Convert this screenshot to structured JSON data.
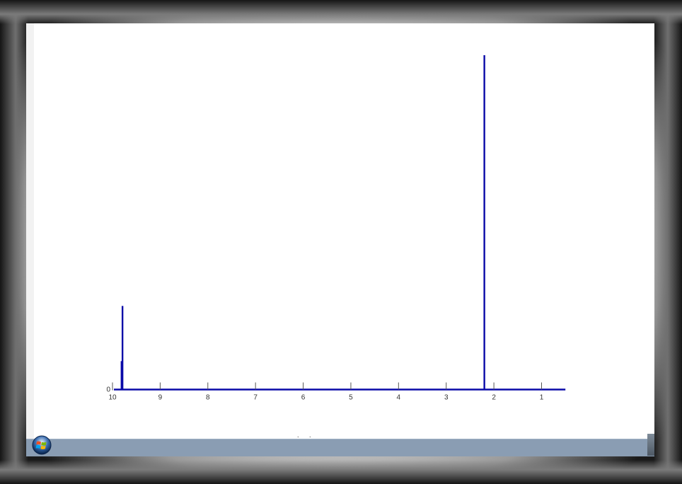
{
  "chart_data": {
    "type": "line",
    "title": "",
    "xlabel": "",
    "ylabel": "",
    "x_reversed": true,
    "xlim": [
      10,
      0.5
    ],
    "ylim": [
      0,
      1
    ],
    "x_ticks": [
      "10",
      "9",
      "8",
      "7",
      "6",
      "5",
      "4",
      "3",
      "2",
      "1"
    ],
    "y_ticks": [
      "0"
    ],
    "grid": false,
    "series": [
      {
        "color": "#0a0aa8",
        "peaks": [
          {
            "x": 9.79,
            "y": 0.25
          },
          {
            "x": 9.81,
            "y": 0.085
          },
          {
            "x": 2.2,
            "y": 1.0
          }
        ]
      }
    ]
  },
  "colors": {
    "series": "#0a0aa8",
    "taskbar": "#8a9db3"
  },
  "taskbar": {
    "start_icon": "windows-start-icon",
    "center_text": ". ."
  }
}
